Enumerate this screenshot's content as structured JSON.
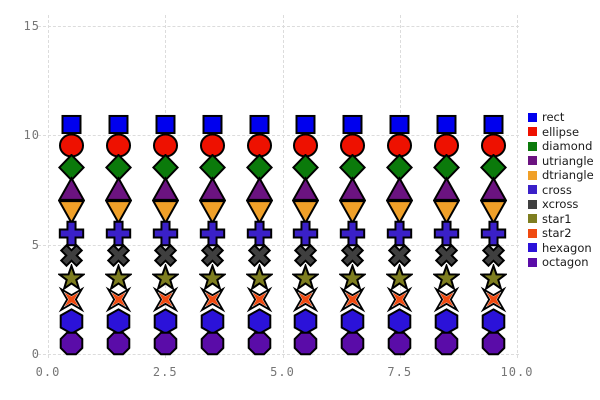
{
  "figure": {
    "background": "#ffffff",
    "grid_color": "#dcdcdc",
    "tick_color": "#767676",
    "legend_text_color": "#1a1a1a",
    "marker_stroke": "#000000"
  },
  "chart_data": {
    "type": "scatter",
    "title": "",
    "xlabel": "",
    "ylabel": "",
    "xlim": [
      0,
      10
    ],
    "ylim": [
      0,
      15
    ],
    "grid": true,
    "legend_position": "right",
    "x": [
      0.5,
      1.5,
      2.5,
      3.5,
      4.5,
      5.5,
      6.5,
      7.5,
      8.5,
      9.5
    ],
    "series": [
      {
        "name": "rect",
        "shape": "rect",
        "color": "#0000ee",
        "y": 10.5
      },
      {
        "name": "ellipse",
        "shape": "ellipse",
        "color": "#ee1100",
        "y": 9.5
      },
      {
        "name": "diamond",
        "shape": "diamond",
        "color": "#0b7a0b",
        "y": 8.5
      },
      {
        "name": "utriangle",
        "shape": "utriangle",
        "color": "#6b1380",
        "y": 7.5
      },
      {
        "name": "dtriangle",
        "shape": "dtriangle",
        "color": "#f0a028",
        "y": 6.5
      },
      {
        "name": "cross",
        "shape": "cross",
        "color": "#3a20c8",
        "y": 5.5
      },
      {
        "name": "xcross",
        "shape": "xcross",
        "color": "#3f3f3f",
        "y": 4.5
      },
      {
        "name": "star1",
        "shape": "star1",
        "color": "#7e7e20",
        "y": 3.5
      },
      {
        "name": "star2",
        "shape": "star2",
        "color": "#f04a10",
        "y": 2.5
      },
      {
        "name": "hexagon",
        "shape": "hexagon",
        "color": "#2b12d9",
        "y": 1.5
      },
      {
        "name": "octagon",
        "shape": "octagon",
        "color": "#5a0ca8",
        "y": 0.5
      }
    ],
    "xticks": [
      {
        "label": "0.0",
        "value": 0
      },
      {
        "label": "2.5",
        "value": 2.5
      },
      {
        "label": "5.0",
        "value": 5
      },
      {
        "label": "7.5",
        "value": 7.5
      },
      {
        "label": "10.0",
        "value": 10
      }
    ],
    "yticks": [
      {
        "label": "0",
        "value": 0
      },
      {
        "label": "5",
        "value": 5
      },
      {
        "label": "10",
        "value": 10
      },
      {
        "label": "15",
        "value": 15
      }
    ],
    "legend_items": [
      "rect",
      "ellipse",
      "diamond",
      "utriangle",
      "dtriangle",
      "cross",
      "xcross",
      "star1",
      "star2",
      "hexagon",
      "octagon"
    ]
  }
}
